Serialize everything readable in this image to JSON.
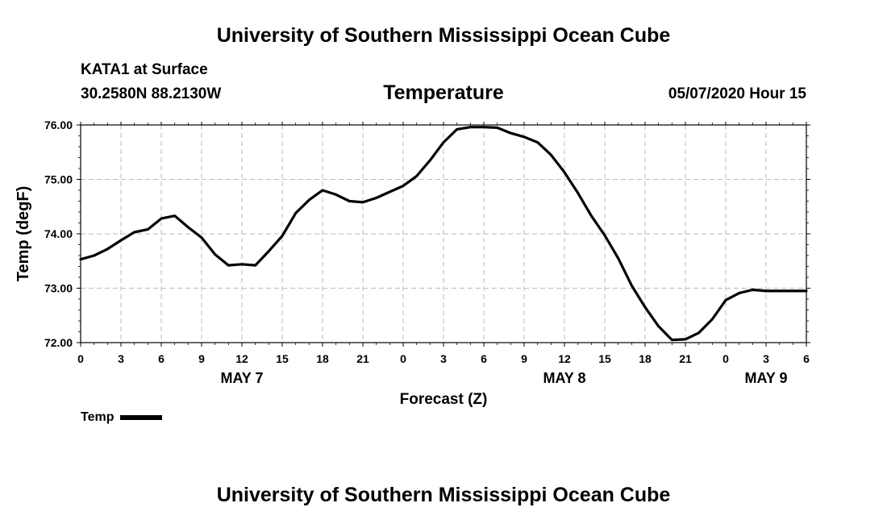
{
  "header": {
    "title": "University of Southern Mississippi Ocean Cube",
    "station": "KATA1 at Surface",
    "coords": "30.2580N 88.2130W",
    "run_time": "05/07/2020 Hour 15"
  },
  "footer": {
    "title": "University of Southern Mississippi Ocean Cube"
  },
  "chart_data": {
    "type": "line",
    "title": "Temperature",
    "xlabel": "Forecast (Z)",
    "ylabel": "Temp (degF)",
    "ylim": [
      72.0,
      76.0
    ],
    "xlim": [
      0,
      54
    ],
    "x_unit": "hours from 05/07 00Z",
    "y_ticks": [
      "72.00",
      "73.00",
      "74.00",
      "75.00",
      "76.00"
    ],
    "x_tick_labels": [
      "0",
      "3",
      "6",
      "9",
      "12",
      "15",
      "18",
      "21",
      "0",
      "3",
      "6",
      "9",
      "12",
      "15",
      "18",
      "21",
      "0",
      "3",
      "6"
    ],
    "date_labels": [
      {
        "text": "MAY 7",
        "at": 12
      },
      {
        "text": "MAY 8",
        "at": 36
      },
      {
        "text": "MAY 9",
        "at": 51
      }
    ],
    "grid": true,
    "legend_position": "bottom-left",
    "series": [
      {
        "name": "Temp",
        "color": "#000000",
        "x": [
          0,
          1,
          2,
          3,
          4,
          5,
          6,
          7,
          8,
          9,
          10,
          11,
          12,
          13,
          14,
          15,
          16,
          17,
          18,
          19,
          20,
          21,
          22,
          23,
          24,
          25,
          26,
          27,
          28,
          29,
          30,
          31,
          32,
          33,
          34,
          35,
          36,
          37,
          38,
          39,
          40,
          41,
          42,
          43,
          44,
          45,
          46,
          47,
          48,
          49,
          50,
          51,
          52,
          53,
          54
        ],
        "values": [
          73.53,
          73.6,
          73.72,
          73.88,
          74.03,
          74.08,
          74.28,
          74.33,
          74.12,
          73.93,
          73.62,
          73.42,
          73.44,
          73.42,
          73.68,
          73.96,
          74.38,
          74.62,
          74.8,
          74.72,
          74.6,
          74.58,
          74.66,
          74.77,
          74.88,
          75.06,
          75.35,
          75.68,
          75.92,
          75.96,
          75.96,
          75.95,
          75.85,
          75.78,
          75.68,
          75.45,
          75.13,
          74.75,
          74.33,
          73.97,
          73.55,
          73.05,
          72.65,
          72.3,
          72.05,
          72.06,
          72.18,
          72.43,
          72.78,
          72.91,
          72.97,
          72.95,
          72.95,
          72.95,
          72.95
        ]
      }
    ]
  }
}
